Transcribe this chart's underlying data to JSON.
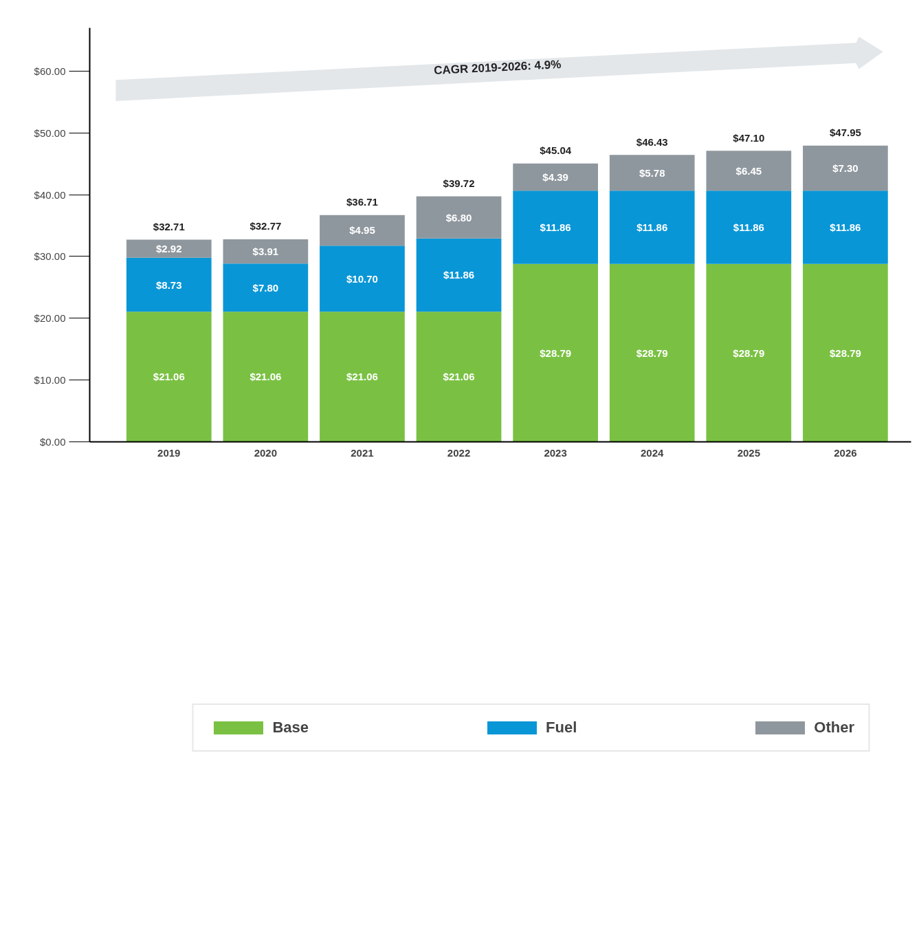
{
  "chart_data": {
    "type": "bar",
    "stacked": true,
    "categories": [
      "2019",
      "2020",
      "2021",
      "2022",
      "2023",
      "2024",
      "2025",
      "2026"
    ],
    "series": [
      {
        "name": "Base",
        "color": "#7ac143",
        "values": [
          21.06,
          21.06,
          21.06,
          21.06,
          28.79,
          28.79,
          28.79,
          28.79
        ],
        "value_labels": [
          "$21.06",
          "$21.06",
          "$21.06",
          "$21.06",
          "$28.79",
          "$28.79",
          "$28.79",
          "$28.79"
        ]
      },
      {
        "name": "Fuel",
        "color": "#0996d6",
        "values": [
          8.73,
          7.8,
          10.7,
          11.86,
          11.86,
          11.86,
          11.86,
          11.86
        ],
        "value_labels": [
          "$8.73",
          "$7.80",
          "$10.70",
          "$11.86",
          "$11.86",
          "$11.86",
          "$11.86",
          "$11.86"
        ]
      },
      {
        "name": "Other",
        "color": "#8f979e",
        "values": [
          2.92,
          3.91,
          4.95,
          6.8,
          4.39,
          5.78,
          6.45,
          7.3
        ],
        "value_labels": [
          "$2.92",
          "$3.91",
          "$4.95",
          "$6.80",
          "$4.39",
          "$5.78",
          "$6.45",
          "$7.30"
        ]
      }
    ],
    "totals": [
      "$32.71",
      "$32.77",
      "$36.71",
      "$39.72",
      "$45.04",
      "$46.43",
      "$47.10",
      "$47.95"
    ],
    "ylim": [
      0,
      67
    ],
    "yticks": [
      {
        "value": 0,
        "label": "$0.00"
      },
      {
        "value": 10,
        "label": "$10.00"
      },
      {
        "value": 20,
        "label": "$20.00"
      },
      {
        "value": 30,
        "label": "$30.00"
      },
      {
        "value": 40,
        "label": "$40.00"
      },
      {
        "value": 50,
        "label": "$50.00"
      },
      {
        "value": 60,
        "label": "$60.00"
      }
    ],
    "annotations": [
      "CAGR 2019-2026: 4.9%"
    ],
    "grid": false,
    "legend": "bottom"
  }
}
